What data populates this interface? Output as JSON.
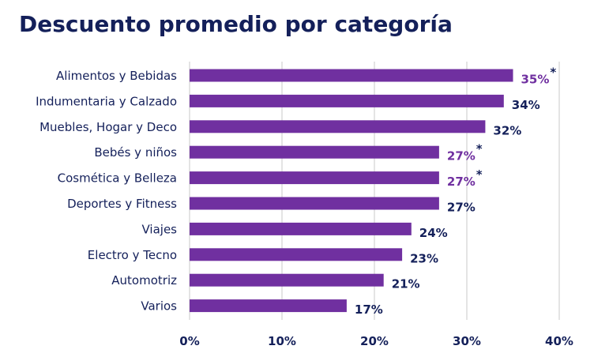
{
  "chart_data": {
    "type": "bar",
    "orientation": "horizontal",
    "title": "Descuento promedio por categoría",
    "xlabel": "",
    "ylabel": "",
    "xlim": [
      0,
      40
    ],
    "x_ticks": [
      "0%",
      "10%",
      "20%",
      "30%",
      "40%"
    ],
    "grid": true,
    "categories": [
      "Alimentos y Bebidas",
      "Indumentaria y Calzado",
      "Muebles, Hogar y Deco",
      "Bebés y niños",
      "Cosmética y Belleza",
      "Deportes y Fitness",
      "Viajes",
      "Electro y Tecno",
      "Automotriz",
      "Varios"
    ],
    "values": [
      35,
      34,
      32,
      27,
      27,
      27,
      24,
      23,
      21,
      17
    ],
    "value_labels": [
      "35%",
      "34%",
      "32%",
      "27%",
      "27%",
      "27%",
      "24%",
      "23%",
      "21%",
      "17%"
    ],
    "highlighted": [
      true,
      false,
      false,
      true,
      true,
      false,
      false,
      false,
      false,
      false
    ],
    "highlight_marker": "*",
    "colors": {
      "bar": "#7030a0",
      "highlight_label": "#7030a0",
      "label": "#14205a",
      "title": "#14205a",
      "grid": "#d9d9d9"
    }
  }
}
